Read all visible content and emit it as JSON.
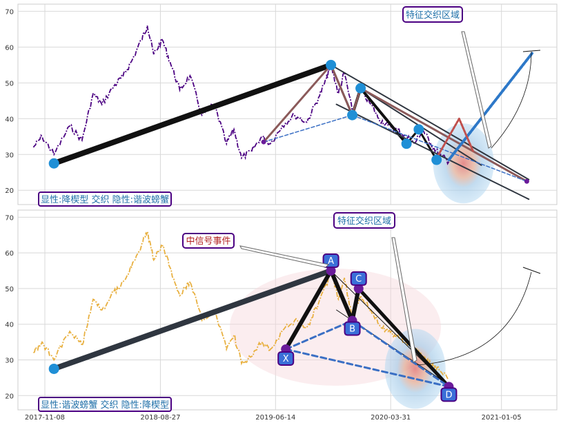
{
  "chart_data": [
    {
      "type": "line",
      "panel": "top",
      "x_axis": {
        "type": "date",
        "range": [
          "2017-09-01",
          "2021-05-25"
        ]
      },
      "ylim": [
        16,
        72
      ],
      "yticks": [
        20,
        30,
        40,
        50,
        60,
        70
      ],
      "grid": true,
      "line_color": "#4B0082",
      "main_line_color": "#4B0082",
      "accent_dark": "#2F3640",
      "accent_blue": "#1F8FD6",
      "bottom_label": "显性:降楔型 交织 隐性:谐波螃蟹",
      "callout": "特征交织区域",
      "price_series": [
        {
          "x": "2017-10-10",
          "y": 32
        },
        {
          "x": "2017-11-01",
          "y": 35
        },
        {
          "x": "2017-12-01",
          "y": 30
        },
        {
          "x": "2018-01-10",
          "y": 38
        },
        {
          "x": "2018-02-10",
          "y": 34
        },
        {
          "x": "2018-03-10",
          "y": 47
        },
        {
          "x": "2018-04-01",
          "y": 44
        },
        {
          "x": "2018-05-01",
          "y": 49
        },
        {
          "x": "2018-05-25",
          "y": 52
        },
        {
          "x": "2018-06-15",
          "y": 56
        },
        {
          "x": "2018-07-10",
          "y": 62
        },
        {
          "x": "2018-07-25",
          "y": 66
        },
        {
          "x": "2018-08-10",
          "y": 58
        },
        {
          "x": "2018-09-01",
          "y": 62
        },
        {
          "x": "2018-09-20",
          "y": 56
        },
        {
          "x": "2018-10-15",
          "y": 48
        },
        {
          "x": "2018-11-10",
          "y": 52
        },
        {
          "x": "2018-12-10",
          "y": 41
        },
        {
          "x": "2019-01-10",
          "y": 44
        },
        {
          "x": "2019-02-10",
          "y": 33
        },
        {
          "x": "2019-03-01",
          "y": 37
        },
        {
          "x": "2019-03-20",
          "y": 29
        },
        {
          "x": "2019-04-15",
          "y": 31
        },
        {
          "x": "2019-05-10",
          "y": 35
        },
        {
          "x": "2019-06-01",
          "y": 33
        },
        {
          "x": "2019-07-01",
          "y": 38
        },
        {
          "x": "2019-08-01",
          "y": 41
        },
        {
          "x": "2019-09-01",
          "y": 39
        },
        {
          "x": "2019-10-01",
          "y": 46
        },
        {
          "x": "2019-10-20",
          "y": 51
        },
        {
          "x": "2019-11-01",
          "y": 55
        },
        {
          "x": "2019-11-20",
          "y": 47
        },
        {
          "x": "2019-12-05",
          "y": 53
        },
        {
          "x": "2019-12-25",
          "y": 42
        },
        {
          "x": "2020-01-15",
          "y": 48
        },
        {
          "x": "2020-02-10",
          "y": 44
        },
        {
          "x": "2020-03-01",
          "y": 40
        },
        {
          "x": "2020-03-25",
          "y": 38
        },
        {
          "x": "2020-04-15",
          "y": 37
        },
        {
          "x": "2020-05-10",
          "y": 35
        },
        {
          "x": "2020-05-30",
          "y": 33
        },
        {
          "x": "2020-06-20",
          "y": 37
        },
        {
          "x": "2020-07-10",
          "y": 33
        },
        {
          "x": "2020-08-01",
          "y": 30
        },
        {
          "x": "2020-08-25",
          "y": 28
        }
      ],
      "pattern_lines": [
        {
          "name": "XA",
          "color": "#111111",
          "width": 8,
          "points": [
            {
              "x": "2017-12-01",
              "y": 27.5
            },
            {
              "x": "2019-11-01",
              "y": 55
            }
          ]
        },
        {
          "name": "AB",
          "color": "#2F3640",
          "width": 3,
          "points": [
            {
              "x": "2019-11-01",
              "y": 55
            },
            {
              "x": "2019-12-25",
              "y": 41
            }
          ]
        },
        {
          "name": "BC",
          "color": "#111111",
          "width": 4,
          "points": [
            {
              "x": "2019-12-25",
              "y": 41
            },
            {
              "x": "2020-01-15",
              "y": 48.5
            }
          ]
        },
        {
          "name": "CD",
          "color": "#111111",
          "width": 4,
          "points": [
            {
              "x": "2020-01-15",
              "y": 48.5
            },
            {
              "x": "2020-05-10",
              "y": 33
            }
          ]
        },
        {
          "name": "D1",
          "color": "#111111",
          "width": 3,
          "points": [
            {
              "x": "2020-05-10",
              "y": 33
            },
            {
              "x": "2020-06-10",
              "y": 37
            }
          ]
        },
        {
          "name": "D2",
          "color": "#111111",
          "width": 3,
          "points": [
            {
              "x": "2020-06-10",
              "y": 37
            },
            {
              "x": "2020-07-25",
              "y": 28.5
            }
          ]
        },
        {
          "name": "upper-wedge",
          "color": "#2F3640",
          "width": 2,
          "points": [
            {
              "x": "2019-11-01",
              "y": 55
            },
            {
              "x": "2021-03-15",
              "y": 23
            }
          ]
        },
        {
          "name": "lower-wedge",
          "color": "#2F3640",
          "width": 2,
          "points": [
            {
              "x": "2019-11-15",
              "y": 44
            },
            {
              "x": "2021-03-15",
              "y": 17.5
            }
          ]
        },
        {
          "name": "mid-wedge",
          "color": "#2F3640",
          "width": 2,
          "points": [
            {
              "x": "2020-01-15",
              "y": 48.5
            },
            {
              "x": "2020-11-15",
              "y": 27
            }
          ]
        },
        {
          "name": "dash-dot",
          "color": "#111111",
          "width": 1.2,
          "dash": "6,3,1,3",
          "points": [
            {
              "x": "2020-01-15",
              "y": 48.5
            },
            {
              "x": "2021-01-10",
              "y": 26
            }
          ]
        },
        {
          "name": "harm-XA",
          "color": "#8B5A5A",
          "width": 3,
          "points": [
            {
              "x": "2019-05-15",
              "y": 33.5
            },
            {
              "x": "2019-11-01",
              "y": 55
            }
          ]
        },
        {
          "name": "harm-AB",
          "color": "#8B5A5A",
          "width": 3,
          "points": [
            {
              "x": "2019-11-01",
              "y": 55
            },
            {
              "x": "2019-12-25",
              "y": 41
            }
          ]
        },
        {
          "name": "harm-BC",
          "color": "#8B5A5A",
          "width": 3,
          "points": [
            {
              "x": "2019-12-25",
              "y": 41
            },
            {
              "x": "2020-01-15",
              "y": 48.5
            }
          ]
        },
        {
          "name": "harm-CD",
          "color": "#8B5A5A",
          "width": 3,
          "points": [
            {
              "x": "2020-01-15",
              "y": 48.5
            },
            {
              "x": "2021-03-10",
              "y": 22.5
            }
          ]
        },
        {
          "name": "harm-XB",
          "color": "#3A6FC4",
          "width": 1.5,
          "dash": "5,3",
          "points": [
            {
              "x": "2019-05-15",
              "y": 33.5
            },
            {
              "x": "2019-12-25",
              "y": 41
            }
          ]
        },
        {
          "name": "harm-BD",
          "color": "#3A6FC4",
          "width": 1.5,
          "dash": "5,3",
          "points": [
            {
              "x": "2019-12-25",
              "y": 41
            },
            {
              "x": "2021-03-10",
              "y": 22.5
            }
          ]
        },
        {
          "name": "signal-up",
          "color": "#2D78C8",
          "width": 4,
          "dash": "4,2",
          "points": [
            {
              "x": "2020-08-25",
              "y": 28.5
            },
            {
              "x": "2021-03-25",
              "y": 58.5
            }
          ]
        },
        {
          "name": "rebound",
          "color": "#C0504D",
          "width": 3,
          "dash": "3,2",
          "points": [
            {
              "x": "2020-07-20",
              "y": 28
            },
            {
              "x": "2020-09-20",
              "y": 40
            },
            {
              "x": "2020-10-25",
              "y": 31
            }
          ]
        }
      ],
      "pivots": [
        {
          "x": "2017-12-01",
          "y": 27.5
        },
        {
          "x": "2019-11-01",
          "y": 55
        },
        {
          "x": "2019-12-25",
          "y": 41
        },
        {
          "x": "2020-01-15",
          "y": 48.5
        },
        {
          "x": "2020-05-10",
          "y": 33
        },
        {
          "x": "2020-06-10",
          "y": 37
        },
        {
          "x": "2020-07-25",
          "y": 28.5
        }
      ],
      "small_pivots": [
        {
          "x": "2019-05-15",
          "y": 33.5
        },
        {
          "x": "2021-03-10",
          "y": 22.5
        }
      ],
      "zone_center": {
        "x": "2020-10-01",
        "y": 27.5
      }
    },
    {
      "type": "line",
      "panel": "bottom",
      "x_axis": {
        "type": "date",
        "range": [
          "2017-09-01",
          "2021-05-25"
        ]
      },
      "ylim": [
        16,
        72
      ],
      "yticks": [
        20,
        30,
        40,
        50,
        60,
        70
      ],
      "xticks": [
        "2017-11-08",
        "2018-08-27",
        "2019-06-14",
        "2020-03-31",
        "2021-01-05"
      ],
      "grid": true,
      "line_color": "#E8B040",
      "bottom_label": "显性:谐波螃蟹 交织 隐性:降楔型",
      "callout": "特征交织区域",
      "event_label": "中信号事件",
      "price_series": [
        {
          "x": "2017-10-10",
          "y": 32
        },
        {
          "x": "2017-11-01",
          "y": 35
        },
        {
          "x": "2017-12-01",
          "y": 30
        },
        {
          "x": "2018-01-10",
          "y": 38
        },
        {
          "x": "2018-02-10",
          "y": 34
        },
        {
          "x": "2018-03-10",
          "y": 47
        },
        {
          "x": "2018-04-01",
          "y": 44
        },
        {
          "x": "2018-05-01",
          "y": 49
        },
        {
          "x": "2018-05-25",
          "y": 52
        },
        {
          "x": "2018-06-15",
          "y": 56
        },
        {
          "x": "2018-07-10",
          "y": 62
        },
        {
          "x": "2018-07-25",
          "y": 66
        },
        {
          "x": "2018-08-10",
          "y": 58
        },
        {
          "x": "2018-09-01",
          "y": 62
        },
        {
          "x": "2018-09-20",
          "y": 56
        },
        {
          "x": "2018-10-15",
          "y": 48
        },
        {
          "x": "2018-11-10",
          "y": 52
        },
        {
          "x": "2018-12-10",
          "y": 41
        },
        {
          "x": "2019-01-10",
          "y": 44
        },
        {
          "x": "2019-02-10",
          "y": 33
        },
        {
          "x": "2019-03-01",
          "y": 37
        },
        {
          "x": "2019-03-20",
          "y": 29
        },
        {
          "x": "2019-04-15",
          "y": 31
        },
        {
          "x": "2019-05-10",
          "y": 35
        },
        {
          "x": "2019-06-01",
          "y": 33
        },
        {
          "x": "2019-07-01",
          "y": 38
        },
        {
          "x": "2019-08-01",
          "y": 41
        },
        {
          "x": "2019-09-01",
          "y": 39
        },
        {
          "x": "2019-10-01",
          "y": 46
        },
        {
          "x": "2019-10-20",
          "y": 51
        },
        {
          "x": "2019-11-01",
          "y": 55
        },
        {
          "x": "2019-11-20",
          "y": 47
        },
        {
          "x": "2019-12-05",
          "y": 53
        },
        {
          "x": "2019-12-25",
          "y": 42
        },
        {
          "x": "2020-01-15",
          "y": 48
        },
        {
          "x": "2020-02-10",
          "y": 44
        },
        {
          "x": "2020-03-01",
          "y": 40
        },
        {
          "x": "2020-03-25",
          "y": 38
        },
        {
          "x": "2020-04-15",
          "y": 37
        },
        {
          "x": "2020-05-10",
          "y": 35
        },
        {
          "x": "2020-05-30",
          "y": 33
        },
        {
          "x": "2020-06-20",
          "y": 31
        },
        {
          "x": "2020-07-10",
          "y": 29
        },
        {
          "x": "2020-08-01",
          "y": 27
        },
        {
          "x": "2020-08-25",
          "y": 24.5
        }
      ],
      "pattern_lines": [
        {
          "name": "XA-main",
          "color": "#2F3640",
          "width": 8,
          "points": [
            {
              "x": "2017-12-01",
              "y": 27.5
            },
            {
              "x": "2019-11-01",
              "y": 55
            }
          ]
        },
        {
          "name": "X-A",
          "color": "#111111",
          "width": 6,
          "points": [
            {
              "x": "2019-07-10",
              "y": 33
            },
            {
              "x": "2019-11-01",
              "y": 55
            }
          ]
        },
        {
          "name": "A-B",
          "color": "#111111",
          "width": 6,
          "points": [
            {
              "x": "2019-11-01",
              "y": 55
            },
            {
              "x": "2019-12-25",
              "y": 41
            }
          ]
        },
        {
          "name": "B-C",
          "color": "#111111",
          "width": 6,
          "points": [
            {
              "x": "2019-12-25",
              "y": 41
            },
            {
              "x": "2020-01-10",
              "y": 50
            }
          ]
        },
        {
          "name": "C-D",
          "color": "#111111",
          "width": 5,
          "points": [
            {
              "x": "2020-01-10",
              "y": 50
            },
            {
              "x": "2020-08-25",
              "y": 22.5
            }
          ]
        },
        {
          "name": "A-D",
          "color": "#111111",
          "width": 1,
          "points": [
            {
              "x": "2019-11-01",
              "y": 55
            },
            {
              "x": "2020-08-25",
              "y": 22.5
            }
          ]
        },
        {
          "name": "wedge-low",
          "color": "#111111",
          "width": 1,
          "points": [
            {
              "x": "2019-11-15",
              "y": 44
            },
            {
              "x": "2020-08-25",
              "y": 23
            }
          ]
        },
        {
          "name": "X-B",
          "color": "#3A6FC4",
          "width": 3,
          "dash": "8,5",
          "points": [
            {
              "x": "2019-07-10",
              "y": 33
            },
            {
              "x": "2019-12-25",
              "y": 41
            }
          ]
        },
        {
          "name": "B-D",
          "color": "#3A6FC4",
          "width": 3,
          "dash": "8,5",
          "points": [
            {
              "x": "2019-12-25",
              "y": 41
            },
            {
              "x": "2020-08-25",
              "y": 22.5
            }
          ]
        },
        {
          "name": "X-D",
          "color": "#3A6FC4",
          "width": 3,
          "dash": "8,5",
          "points": [
            {
              "x": "2019-07-10",
              "y": 33
            },
            {
              "x": "2020-08-25",
              "y": 22.5
            }
          ]
        }
      ],
      "pivot_labels": [
        {
          "label": "X",
          "x": "2019-07-10",
          "y": 33
        },
        {
          "label": "A",
          "x": "2019-11-01",
          "y": 55
        },
        {
          "label": "B",
          "x": "2019-12-25",
          "y": 41
        },
        {
          "label": "C",
          "x": "2020-01-10",
          "y": 50
        },
        {
          "label": "D",
          "x": "2020-08-25",
          "y": 22.5
        }
      ],
      "start_point": {
        "x": "2017-12-01",
        "y": 27.5
      },
      "zone_center": {
        "x": "2020-06-01",
        "y": 27.5
      }
    }
  ]
}
